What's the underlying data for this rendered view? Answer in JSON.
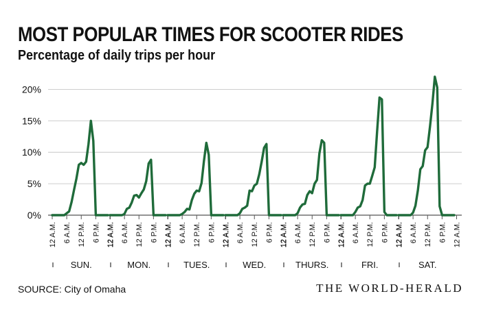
{
  "chart_data": {
    "type": "line",
    "title": "MOST POPULAR TIMES FOR SCOOTER RIDES",
    "subtitle": "Percentage of daily trips per hour",
    "ylabel": "",
    "xlabel": "",
    "ylim": [
      0,
      22
    ],
    "yticks": [
      0,
      5,
      10,
      15,
      20
    ],
    "ytick_labels": [
      "0%",
      "5%",
      "10%",
      "15%",
      "20%"
    ],
    "grid": "horizontal",
    "legend": "none",
    "line_color": "#1f6b3a",
    "hour_tick_labels": [
      "12 A.M.",
      "6 A.M.",
      "12 P.M.",
      "6 P.M.",
      "12 A.M."
    ],
    "series": [
      {
        "day": "SUN.",
        "values": [
          0,
          0,
          0,
          0,
          0,
          0,
          0.3,
          0.6,
          2.1,
          4,
          5.8,
          8,
          8.3,
          8,
          8.5,
          11.3,
          15,
          11.8,
          0,
          0,
          0,
          0,
          0,
          0
        ]
      },
      {
        "day": "MON.",
        "values": [
          0,
          0,
          0,
          0,
          0,
          0,
          0.2,
          1,
          1.2,
          2,
          3.1,
          3.2,
          2.8,
          3.5,
          4.1,
          5.4,
          8.2,
          8.8,
          0,
          0,
          0,
          0,
          0,
          0
        ]
      },
      {
        "day": "TUES.",
        "values": [
          0,
          0,
          0,
          0,
          0,
          0,
          0.2,
          0.5,
          1,
          0.9,
          2.4,
          3.4,
          3.9,
          3.8,
          5.1,
          8.6,
          11.5,
          9.6,
          0,
          0,
          0,
          0,
          0,
          0
        ]
      },
      {
        "day": "WED.",
        "values": [
          0,
          0,
          0,
          0,
          0,
          0,
          0.3,
          1,
          1.2,
          1.5,
          3.9,
          3.8,
          4.7,
          5,
          6.5,
          8.5,
          10.7,
          11.3,
          0,
          0,
          0,
          0,
          0,
          0
        ]
      },
      {
        "day": "THURS.",
        "values": [
          0,
          0,
          0,
          0,
          0,
          0,
          0.3,
          1.2,
          1.7,
          1.8,
          3.2,
          3.8,
          3.5,
          5,
          5.6,
          9.8,
          11.9,
          11.5,
          0,
          0,
          0,
          0,
          0,
          0
        ]
      },
      {
        "day": "FRI.",
        "values": [
          0,
          0,
          0,
          0,
          0,
          0,
          0.5,
          1.2,
          1.4,
          2.4,
          4.7,
          5,
          5,
          6.3,
          7.6,
          13.3,
          18.7,
          18.4,
          0.5,
          0,
          0,
          0,
          0,
          0
        ]
      },
      {
        "day": "SAT.",
        "values": [
          0,
          0,
          0,
          0,
          0,
          0,
          0.4,
          1.5,
          4,
          7.3,
          7.8,
          10.3,
          10.8,
          14.1,
          17.7,
          22,
          20.3,
          1.4,
          0,
          0,
          0,
          0,
          0,
          0
        ]
      }
    ]
  },
  "footer": {
    "source": "SOURCE: City of Omaha",
    "brand": "THE WORLD-HERALD"
  }
}
